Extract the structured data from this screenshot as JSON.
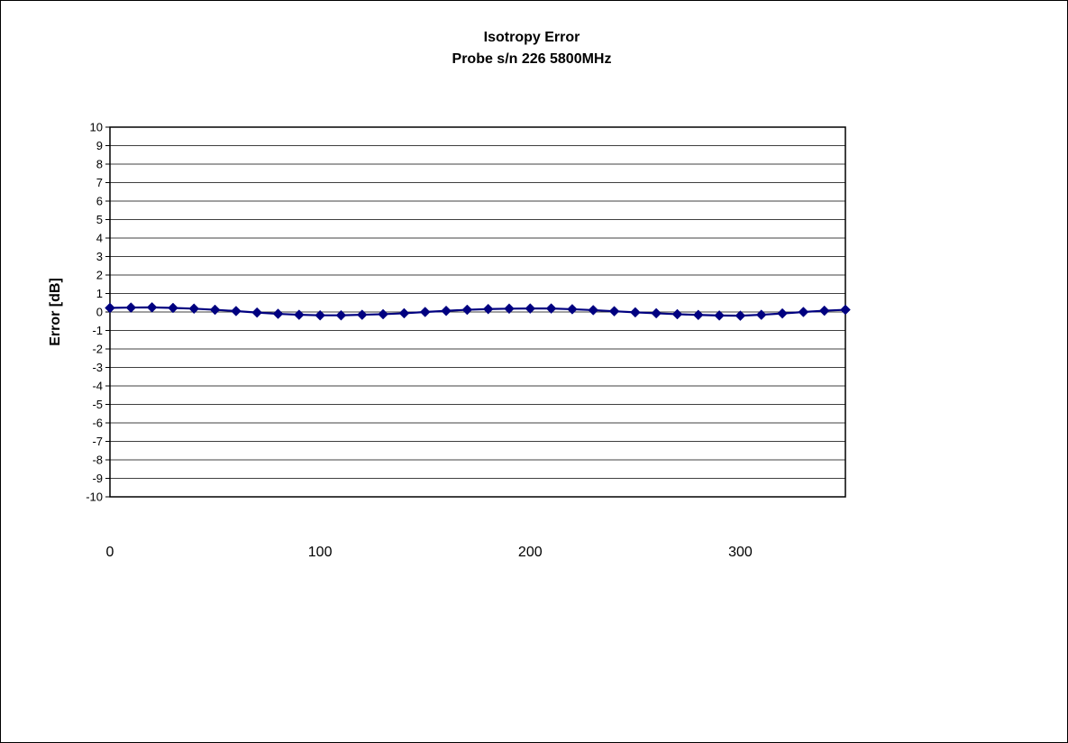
{
  "chart_data": {
    "type": "line",
    "title": "Isotropy Error",
    "subtitle": "Probe s/n 226 5800MHz",
    "xlabel": "",
    "ylabel": "Error [dB]",
    "xlim": [
      0,
      350
    ],
    "ylim": [
      -10,
      10
    ],
    "x_ticks": [
      0,
      100,
      200,
      300
    ],
    "y_ticks": [
      10,
      9,
      8,
      7,
      6,
      5,
      4,
      3,
      2,
      1,
      0,
      -1,
      -2,
      -3,
      -4,
      -5,
      -6,
      -7,
      -8,
      -9,
      -10
    ],
    "grid": "horizontal",
    "series_color": "#000080",
    "series": [
      {
        "x": [
          0,
          10,
          20,
          30,
          40,
          50,
          60,
          70,
          80,
          90,
          100,
          110,
          120,
          130,
          140,
          150,
          160,
          170,
          180,
          190,
          200,
          210,
          220,
          230,
          240,
          250,
          260,
          270,
          280,
          290,
          300,
          310,
          320,
          330,
          340,
          350
        ],
        "values": [
          0.22,
          0.24,
          0.25,
          0.22,
          0.18,
          0.12,
          0.05,
          -0.03,
          -0.1,
          -0.15,
          -0.18,
          -0.18,
          -0.15,
          -0.12,
          -0.07,
          0.0,
          0.06,
          0.12,
          0.16,
          0.18,
          0.19,
          0.19,
          0.15,
          0.1,
          0.04,
          -0.02,
          -0.07,
          -0.12,
          -0.16,
          -0.19,
          -0.2,
          -0.15,
          -0.08,
          0.0,
          0.07,
          0.12
        ]
      }
    ]
  }
}
